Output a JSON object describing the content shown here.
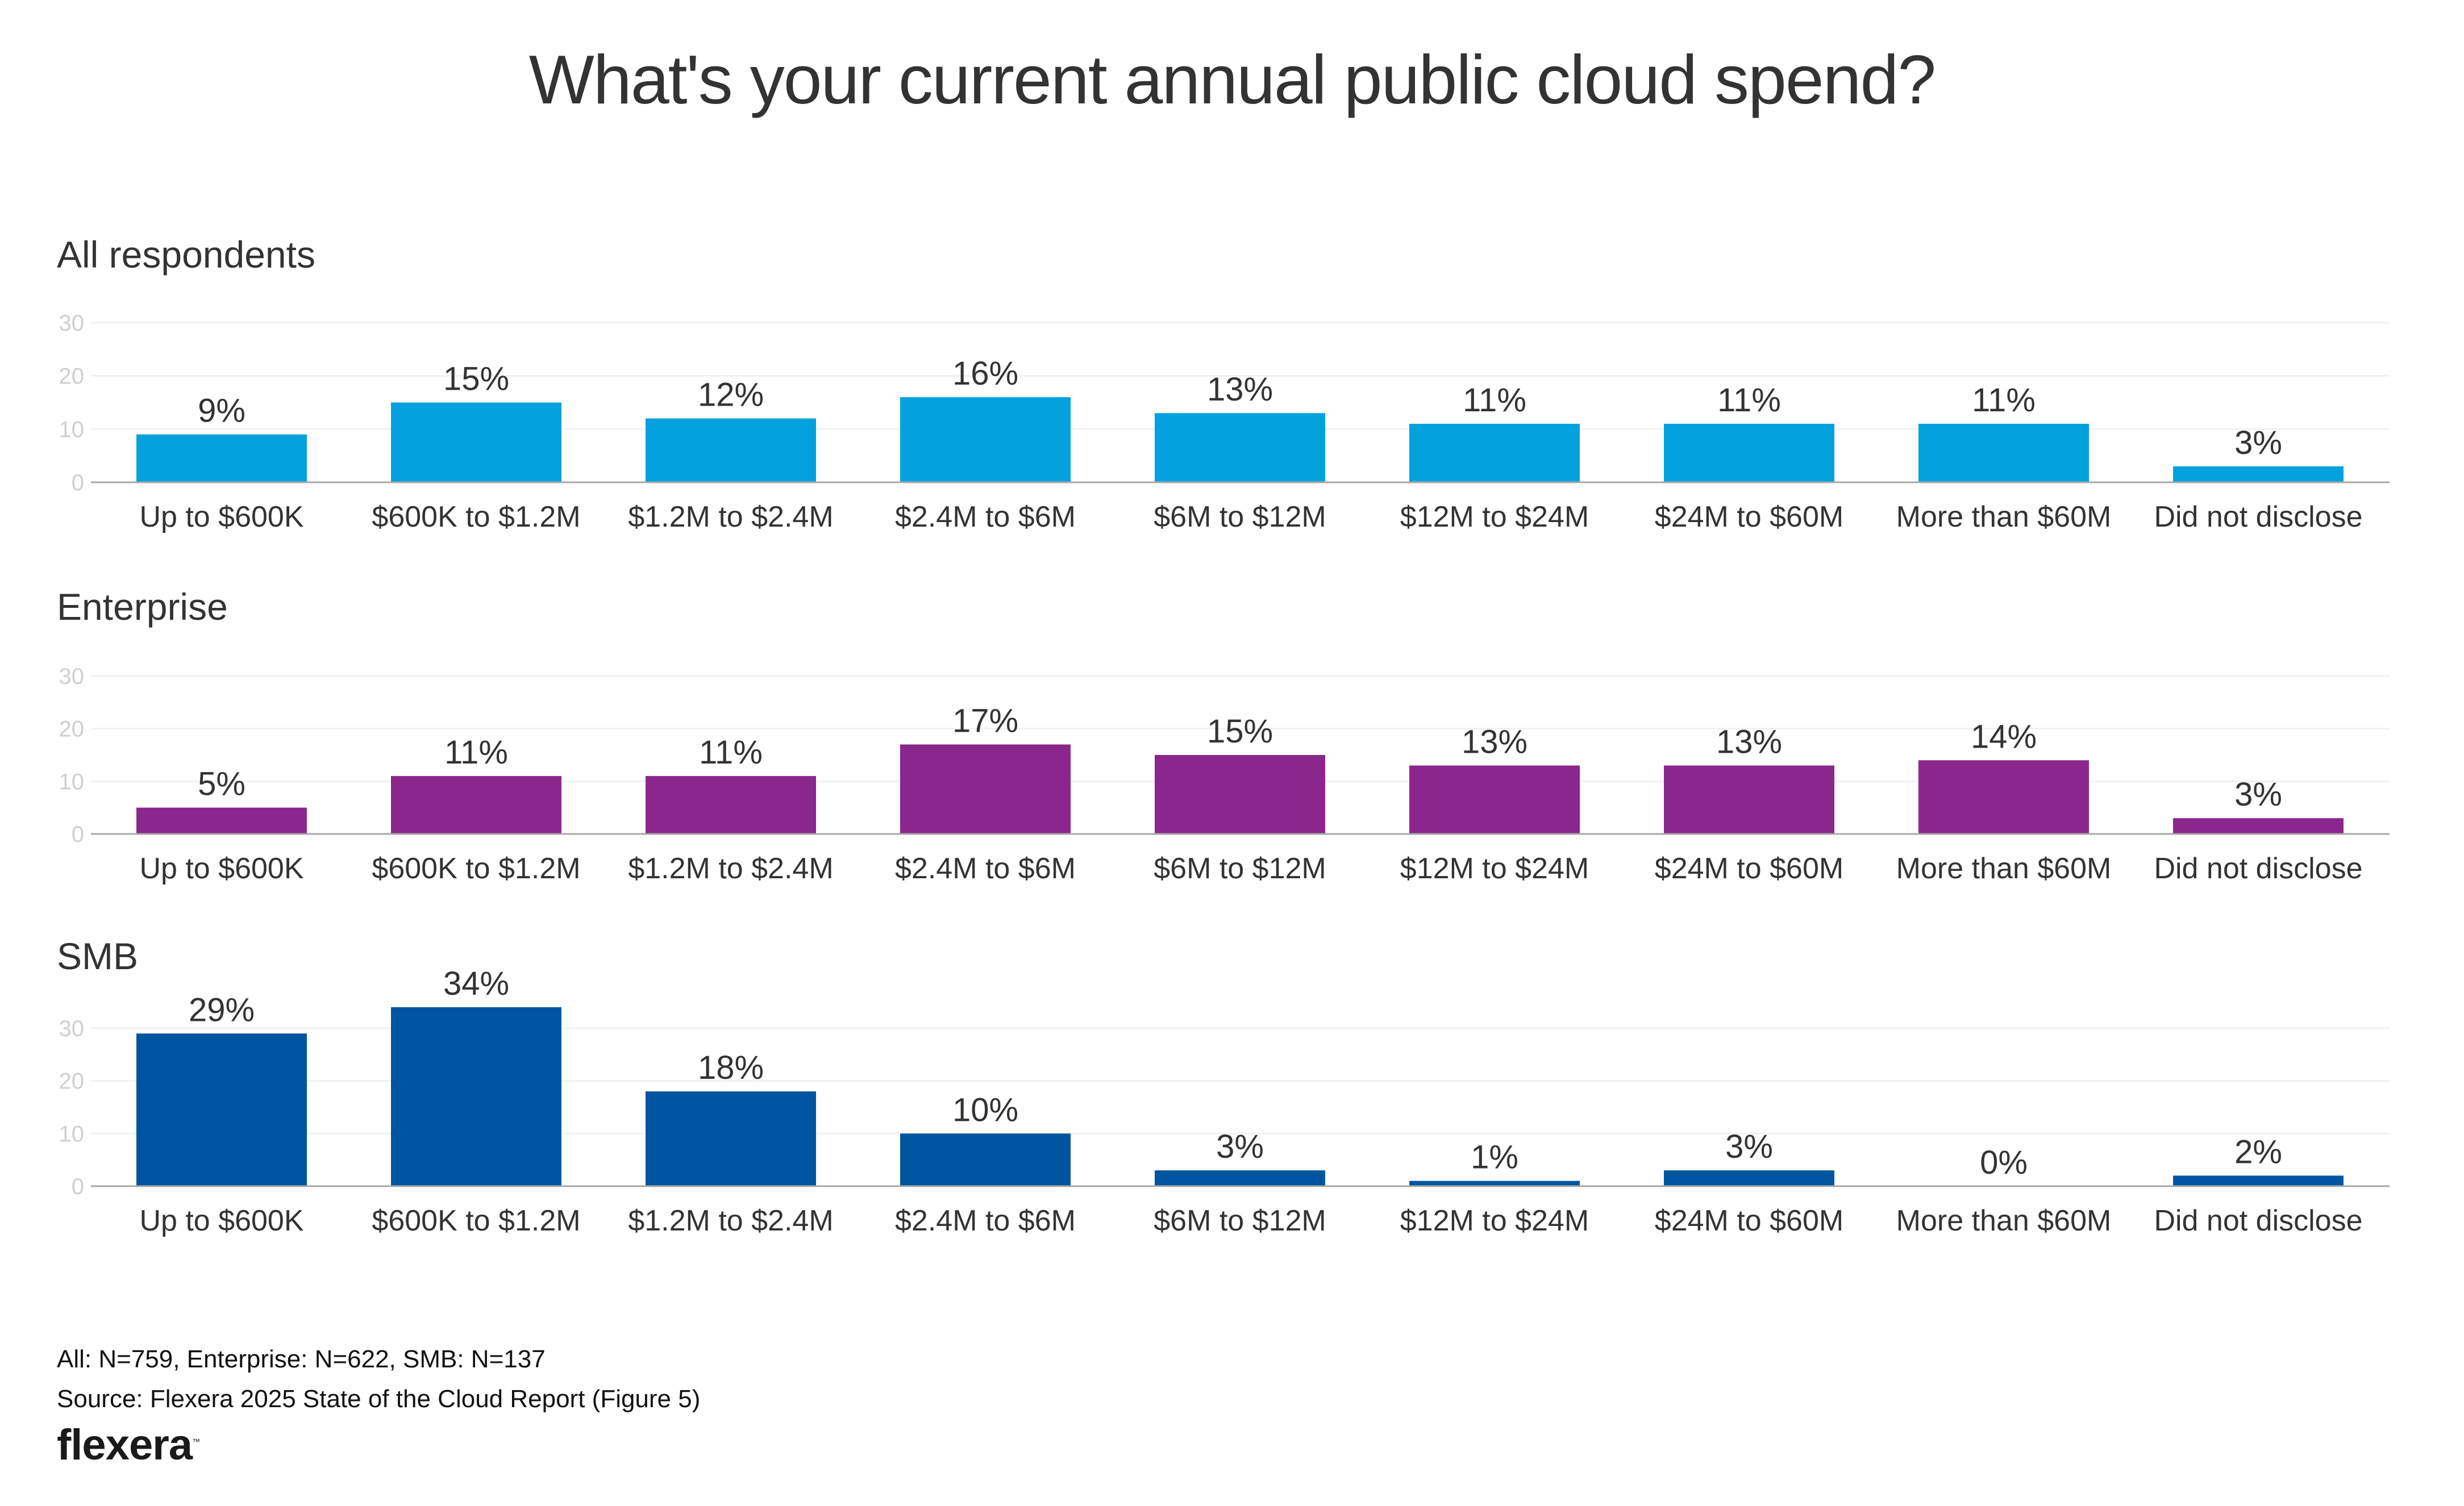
{
  "chart_data": [
    {
      "type": "bar",
      "title": "What's your current annual public cloud spend?",
      "subtitle": "All respondents",
      "categories": [
        "Up to $600K",
        "$600K to $1.2M",
        "$1.2M to $2.4M",
        "$2.4M to $6M",
        "$6M to $12M",
        "$12M to $24M",
        "$24M to $60M",
        "More than $60M",
        "Did not disclose"
      ],
      "values": [
        9,
        15,
        12,
        16,
        13,
        11,
        11,
        11,
        3
      ],
      "value_labels": [
        "9%",
        "15%",
        "12%",
        "16%",
        "13%",
        "11%",
        "11%",
        "11%",
        "3%"
      ],
      "color": "#03a1de",
      "ylim": [
        0,
        30
      ],
      "yticks": [
        0,
        10,
        20,
        30
      ],
      "grid": true,
      "xlabel": "",
      "ylabel": ""
    },
    {
      "type": "bar",
      "subtitle": "Enterprise",
      "categories": [
        "Up to $600K",
        "$600K to $1.2M",
        "$1.2M to $2.4M",
        "$2.4M to $6M",
        "$6M to $12M",
        "$12M to $24M",
        "$24M to $60M",
        "More than $60M",
        "Did not disclose"
      ],
      "values": [
        5,
        11,
        11,
        17,
        15,
        13,
        13,
        14,
        3
      ],
      "value_labels": [
        "5%",
        "11%",
        "11%",
        "17%",
        "15%",
        "13%",
        "13%",
        "14%",
        "3%"
      ],
      "color": "#8b278c",
      "ylim": [
        0,
        30
      ],
      "yticks": [
        0,
        10,
        20,
        30
      ],
      "grid": true,
      "xlabel": "",
      "ylabel": ""
    },
    {
      "type": "bar",
      "subtitle": "SMB",
      "categories": [
        "Up to $600K",
        "$600K to $1.2M",
        "$1.2M to $2.4M",
        "$2.4M to $6M",
        "$6M to $12M",
        "$12M to $24M",
        "$24M to $60M",
        "More than $60M",
        "Did not disclose"
      ],
      "values": [
        29,
        34,
        18,
        10,
        3,
        1,
        3,
        0,
        2
      ],
      "value_labels": [
        "29%",
        "34%",
        "18%",
        "10%",
        "3%",
        "1%",
        "3%",
        "0%",
        "2%"
      ],
      "color": "#0055a0",
      "ylim": [
        0,
        30
      ],
      "yticks": [
        0,
        10,
        20,
        30
      ],
      "grid": true,
      "xlabel": "",
      "ylabel": ""
    }
  ],
  "page": {
    "title": "What's your current annual public cloud spend?",
    "footer": {
      "sample_sizes": "All: N=759, Enterprise: N=622, SMB: N=137",
      "source": "Source: Flexera 2025 State of the Cloud Report (Figure 5)",
      "logo": "flexera",
      "logo_mark": "™"
    },
    "colors": {
      "grid": "#f1f2f2",
      "baseline": "#a8a8a8",
      "tick": "#cfcfcf",
      "text": "#333333"
    }
  }
}
